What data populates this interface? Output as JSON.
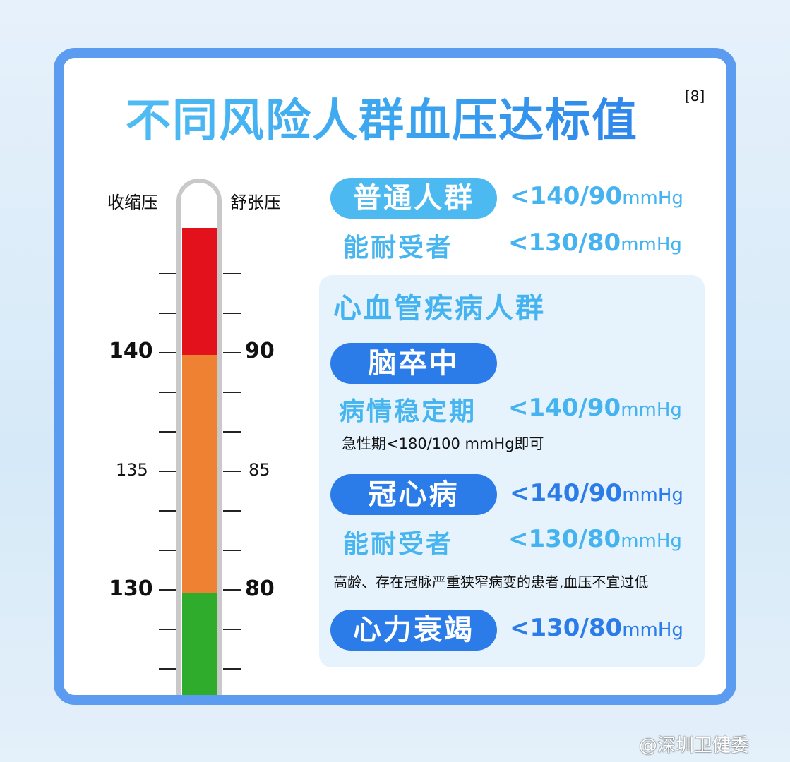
{
  "title": "不同风险人群血压达标值",
  "reference": "[8]",
  "thermometer": {
    "left_label": "收缩压",
    "right_label": "舒张压",
    "systolic_ticks": [
      "140",
      "135",
      "130"
    ],
    "diastolic_ticks": [
      "90",
      "85",
      "80"
    ],
    "zones": [
      {
        "color": "#e3111b"
      },
      {
        "color": "#ee8132"
      },
      {
        "color": "#2fac2b"
      }
    ]
  },
  "general": {
    "label": "普通人群",
    "value": "<140/90",
    "unit": "mmHg",
    "tolerant_label": "能耐受者",
    "tolerant_value": "<130/80",
    "tolerant_unit": "mmHg"
  },
  "cvd": {
    "heading": "心血管疾病人群",
    "stroke": {
      "label": "脑卒中",
      "stable_label": "病情稳定期",
      "value": "<140/90",
      "unit": "mmHg",
      "note": "急性期<180/100 mmHg即可"
    },
    "chd": {
      "label": "冠心病",
      "value": "<140/90",
      "unit": "mmHg",
      "tolerant_label": "能耐受者",
      "tolerant_value": "<130/80",
      "tolerant_unit": "mmHg",
      "note": "高龄、存在冠脉严重狭窄病变的患者,血压不宜过低"
    },
    "hf": {
      "label": "心力衰竭",
      "value": "<130/80",
      "unit": "mmHg"
    }
  },
  "watermark": "@深圳卫健委",
  "colors": {
    "light_blue": "#4cb9f1",
    "dark_blue": "#2b7ce9",
    "border": "#5b9cf0"
  }
}
